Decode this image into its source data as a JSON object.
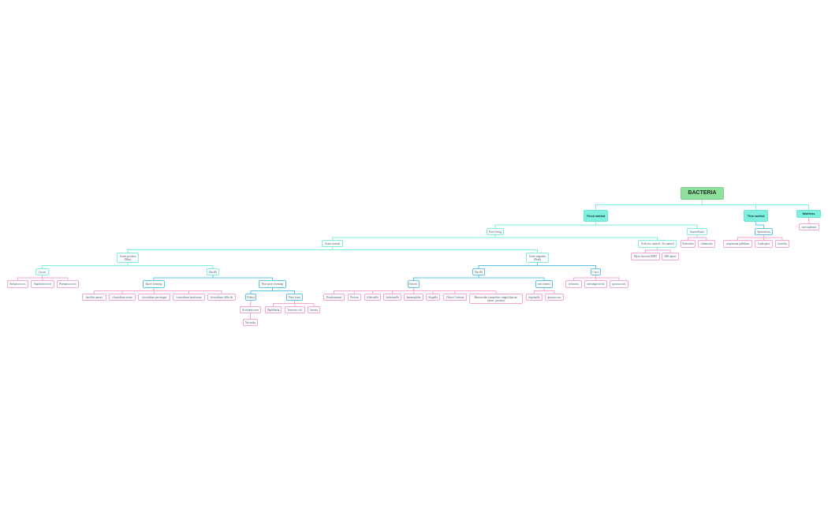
{
  "colors": {
    "root": "#8fe09b",
    "main": "#7ef0df",
    "cyan_link": "#7eeedd",
    "blue_link": "#5ec2ef",
    "pink_leaf": "#f6a6cf"
  },
  "nodes": [
    {
      "id": "bacteria",
      "label": "BACTERIA",
      "parent": null,
      "style": "root"
    },
    {
      "id": "thick",
      "label": "Thick walled",
      "parent": "bacteria",
      "style": "main"
    },
    {
      "id": "thin",
      "label": "Thin walled",
      "parent": "bacteria",
      "style": "main"
    },
    {
      "id": "wallless",
      "label": "Wallless",
      "parent": "bacteria",
      "style": "main"
    },
    {
      "id": "mycoplasma",
      "label": "mycoplasma",
      "parent": "wallless",
      "style": "pink"
    },
    {
      "id": "spiro",
      "label": "Spirochetes",
      "parent": "thin",
      "style": "blue"
    },
    {
      "id": "trep",
      "label": "treponema pallidum",
      "parent": "spiro",
      "style": "pink"
    },
    {
      "id": "lepto",
      "label": "Leptospira",
      "parent": "spiro",
      "style": "pink"
    },
    {
      "id": "borrelia",
      "label": "borrelia",
      "parent": "spiro",
      "style": "pink"
    },
    {
      "id": "free",
      "label": "Free living",
      "parent": "thick",
      "style": "cyan"
    },
    {
      "id": "intra",
      "label": "Intracellular",
      "parent": "thick",
      "style": "cyan"
    },
    {
      "id": "rick",
      "label": "Rickettsia",
      "parent": "intra",
      "style": "pink"
    },
    {
      "id": "chlam",
      "label": "chlamydia",
      "parent": "intra",
      "style": "pink"
    },
    {
      "id": "gram",
      "label": "Gram stained",
      "parent": "free",
      "style": "cyan"
    },
    {
      "id": "acid",
      "label": "Acid fast stained / Zn stained",
      "parent": "free",
      "style": "cyan"
    },
    {
      "id": "mbt",
      "label": "Myco bacteria MBT",
      "parent": "acid",
      "style": "pink"
    },
    {
      "id": "mbl",
      "label": "MB leprae",
      "parent": "acid",
      "style": "pink"
    },
    {
      "id": "gpos",
      "label": "Gram positive (Blue)",
      "parent": "gram",
      "style": "cyan"
    },
    {
      "id": "gneg",
      "label": "Gram negative (Pink)",
      "parent": "gram",
      "style": "cyan"
    },
    {
      "id": "cocus",
      "label": "Cocus",
      "parent": "gpos",
      "style": "cyan"
    },
    {
      "id": "strep",
      "label": "Streptococcus",
      "parent": "cocus",
      "style": "pink"
    },
    {
      "id": "staph",
      "label": "Staphylococcus",
      "parent": "cocus",
      "style": "pink"
    },
    {
      "id": "pneumo",
      "label": "Pneumococcus",
      "parent": "cocus",
      "style": "pink"
    },
    {
      "id": "pbac",
      "label": "Bacilli",
      "parent": "gpos",
      "style": "cyan"
    },
    {
      "id": "spore",
      "label": "Spore forming",
      "parent": "pbac",
      "style": "blue"
    },
    {
      "id": "antrax",
      "label": "bacillus antrax",
      "parent": "spore",
      "style": "pink"
    },
    {
      "id": "tetani",
      "label": "clostridium tetani",
      "parent": "spore",
      "style": "pink"
    },
    {
      "id": "perf",
      "label": "clostridium perfringei",
      "parent": "spore",
      "style": "pink"
    },
    {
      "id": "botu",
      "label": "clostridium botulinum",
      "parent": "spore",
      "style": "pink"
    },
    {
      "id": "diff",
      "label": "clostridium difficile",
      "parent": "spore",
      "style": "pink"
    },
    {
      "id": "nonspore",
      "label": "Non spore forming",
      "parent": "pbac",
      "style": "blue"
    },
    {
      "id": "bilasti",
      "label": "Bilasti",
      "parent": "nonspore",
      "style": "blue"
    },
    {
      "id": "actino",
      "label": "Actinomycetes",
      "parent": "bilasti",
      "style": "pink"
    },
    {
      "id": "nocardia",
      "label": "Nocardia",
      "parent": "actino",
      "style": "pink"
    },
    {
      "id": "pure",
      "label": "Pure form",
      "parent": "nonspore",
      "style": "blue"
    },
    {
      "id": "diph",
      "label": "Diphtheria",
      "parent": "pure",
      "style": "pink"
    },
    {
      "id": "bcoli",
      "label": "bacteria coli",
      "parent": "pure",
      "style": "pink"
    },
    {
      "id": "listeria",
      "label": "listeria",
      "parent": "pure",
      "style": "pink"
    },
    {
      "id": "nbac",
      "label": "Bacilli",
      "parent": "gneg",
      "style": "blue"
    },
    {
      "id": "cocci",
      "label": "Cocci",
      "parent": "gneg",
      "style": "blue"
    },
    {
      "id": "enteric",
      "label": "Enteric",
      "parent": "nbac",
      "style": "blue"
    },
    {
      "id": "nonent",
      "label": "non enteric",
      "parent": "nbac",
      "style": "blue"
    },
    {
      "id": "pseudo",
      "label": "Pseudomonas",
      "parent": "enteric",
      "style": "pink"
    },
    {
      "id": "proteus",
      "label": "Proteus",
      "parent": "enteric",
      "style": "pink"
    },
    {
      "id": "kleb",
      "label": "Klebsiella",
      "parent": "enteric",
      "style": "pink"
    },
    {
      "id": "salm",
      "label": "Salmonella",
      "parent": "enteric",
      "style": "pink"
    },
    {
      "id": "haemo",
      "label": "haemophilia",
      "parent": "enteric",
      "style": "pink"
    },
    {
      "id": "shig",
      "label": "Shigella",
      "parent": "enteric",
      "style": "pink"
    },
    {
      "id": "vibrio",
      "label": "Vibrio Cholerae",
      "parent": "enteric",
      "style": "pink"
    },
    {
      "id": "bactero",
      "label": "Bacteroides (anaerobe campylobacter, jejuni, yersinia)",
      "parent": "enteric",
      "style": "pink"
    },
    {
      "id": "legion",
      "label": "legionella",
      "parent": "nonent",
      "style": "pink"
    },
    {
      "id": "gono1",
      "label": "gonococcus",
      "parent": "nonent",
      "style": "pink"
    },
    {
      "id": "neis",
      "label": "neisseria",
      "parent": "cocci",
      "style": "pink"
    },
    {
      "id": "mening",
      "label": "meningococcal",
      "parent": "cocci",
      "style": "pink"
    },
    {
      "id": "gono2",
      "label": "gonococcus",
      "parent": "cocci",
      "style": "pink"
    }
  ]
}
